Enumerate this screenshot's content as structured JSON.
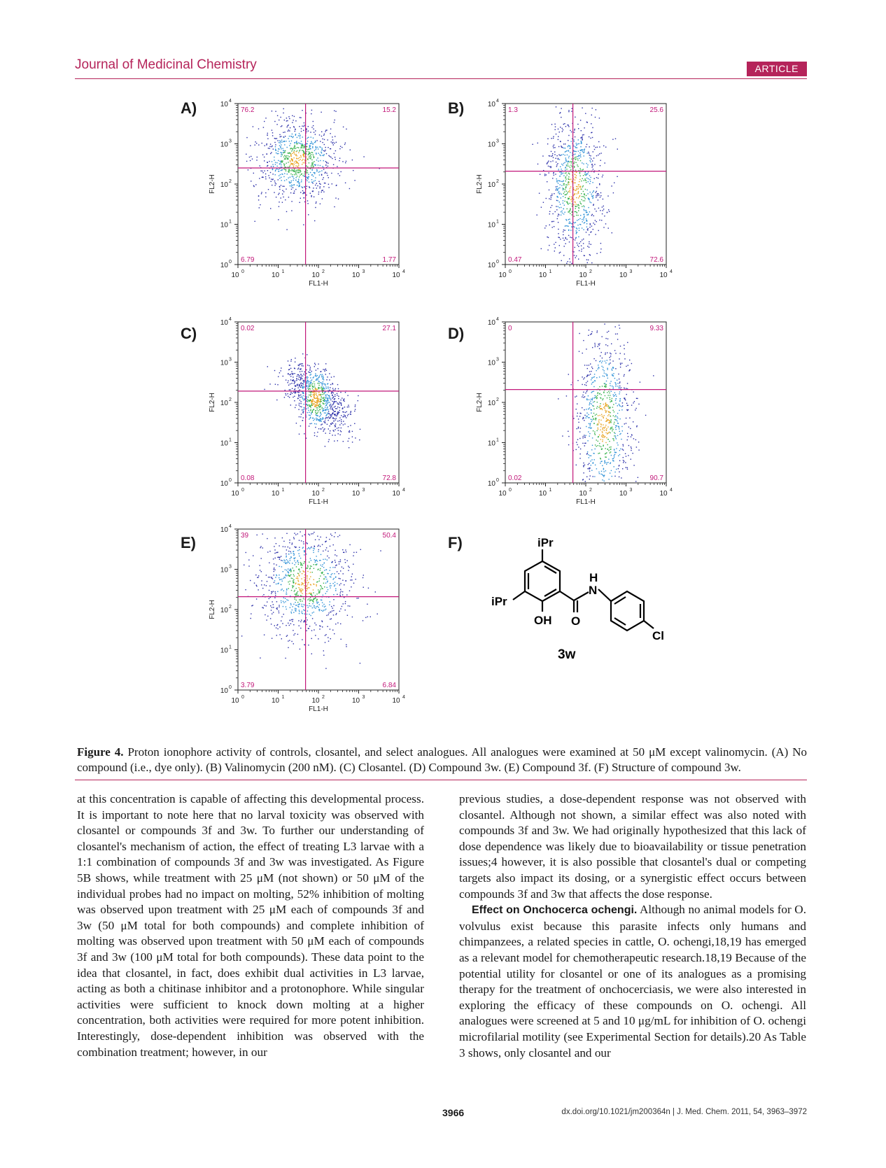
{
  "header": {
    "journal": "Journal of Medicinal Chemistry",
    "badge": "ARTICLE"
  },
  "figure": {
    "panels": [
      {
        "letter": "A)",
        "xlabel": "FL1-H",
        "ylabel": "FL2-H",
        "q_ul": "76.2",
        "q_ur": "15.2",
        "q_ll": "6.79",
        "q_lr": "1.77"
      },
      {
        "letter": "B)",
        "xlabel": "FL1-H",
        "ylabel": "FL2-H",
        "q_ul": "1.3",
        "q_ur": "25.6",
        "q_ll": "0.47",
        "q_lr": "72.6"
      },
      {
        "letter": "C)",
        "xlabel": "FL1-H",
        "ylabel": "FL2-H",
        "q_ul": "0.02",
        "q_ur": "27.1",
        "q_ll": "0.08",
        "q_lr": "72.8"
      },
      {
        "letter": "D)",
        "xlabel": "FL1-H",
        "ylabel": "FL2-H",
        "q_ul": "0",
        "q_ur": "9.33",
        "q_ll": "0.02",
        "q_lr": "90.7"
      },
      {
        "letter": "E)",
        "xlabel": "FL1-H",
        "ylabel": "FL2-H",
        "q_ul": "39",
        "q_ur": "50.4",
        "q_ll": "3.79",
        "q_lr": "6.84"
      }
    ],
    "axis_ticks": [
      "10",
      "10",
      "10",
      "10",
      "10"
    ],
    "axis_exponents": [
      "0",
      "1",
      "2",
      "3",
      "4"
    ],
    "structure": {
      "letter": "F)",
      "ipr": "iPr",
      "ipr2": "iPr",
      "h": "H",
      "n": "N",
      "oh": "OH",
      "o": "O",
      "cl": "Cl",
      "name": "3w"
    }
  },
  "caption": {
    "label": "Figure 4.",
    "text": "Proton ionophore activity of controls, closantel, and select analogues. All analogues were examined at 50 μM except valinomycin. (A) No compound (i.e., dye only). (B) Valinomycin (200 nM). (C) Closantel. (D) Compound 3w. (E) Compound 3f. (F) Structure of compound 3w."
  },
  "body": {
    "left": "at this concentration is capable of affecting this developmental process. It is important to note here that no larval toxicity was observed with closantel or compounds 3f and 3w. To further our understanding of closantel's mechanism of action, the effect of treating L3 larvae with a 1:1 combination of compounds 3f and 3w was investigated. As Figure 5B shows, while treatment with 25 μM (not shown) or 50 μM of the individual probes had no impact on molting, 52% inhibition of molting was observed upon treatment with 25 μM each of compounds 3f and 3w (50 μM total for both compounds) and complete inhibition of molting was observed upon treatment with 50 μM each of compounds 3f and 3w (100 μM total for both compounds). These data point to the idea that closantel, in fact, does exhibit dual activities in L3 larvae, acting as both a chitinase inhibitor and a protonophore. While singular activities were sufficient to knock down molting at a higher concentration, both activities were required for more potent inhibition. Interestingly, dose-dependent inhibition was observed with the combination treatment; however, in our",
    "right1": "previous studies, a dose-dependent response was not observed with closantel. Although not shown, a similar effect was also noted with compounds 3f and 3w. We had originally hypothesized that this lack of dose dependence was likely due to bioavailability or tissue penetration issues;4 however, it is also possible that closantel's dual or competing targets also impact its dosing, or a synergistic effect occurs between compounds 3f and 3w that affects the dose response.",
    "right2_head": "Effect on Onchocerca ochengi.",
    "right2": "Although no animal models for O. volvulus exist because this parasite infects only humans and chimpanzees, a related species in cattle, O. ochengi,18,19 has emerged as a relevant model for chemotherapeutic research.18,19 Because of the potential utility for closantel or one of its analogues as a promising therapy for the treatment of onchocerciasis, we were also interested in exploring the efficacy of these compounds on O. ochengi. All analogues were screened at 5 and 10 μg/mL for inhibition of O. ochengi microfilarial motility (see Experimental Section for details).20 As Table 3 shows, only closantel and our"
  },
  "footer": {
    "page": "3966",
    "doi": "dx.doi.org/10.1021/jm200364n | J. Med. Chem. 2011, 54, 3963–3972"
  }
}
